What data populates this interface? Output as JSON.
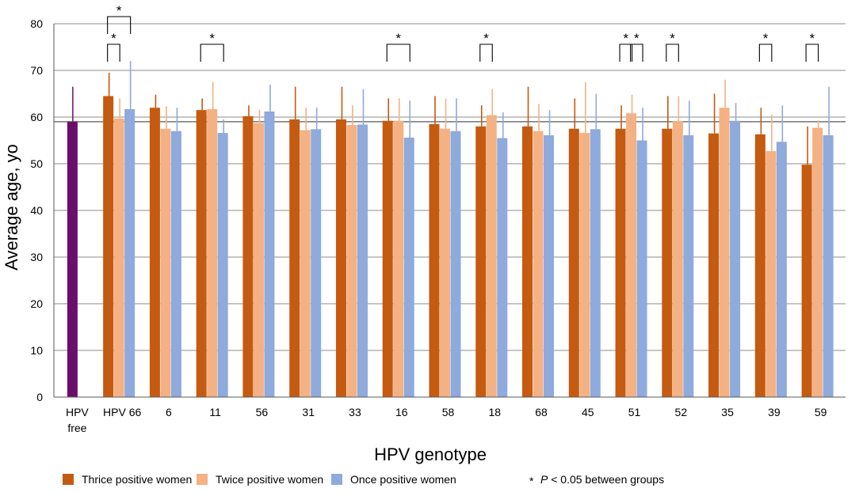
{
  "chart_data": {
    "type": "bar",
    "ylabel": "Average age, yo",
    "xlabel": "HPV genotype",
    "ylim": [
      0,
      80
    ],
    "yticks": [
      0,
      10,
      20,
      30,
      40,
      50,
      60,
      70,
      80
    ],
    "reference_line": 59,
    "reference_group": {
      "label_lines": [
        "HPV",
        "free"
      ],
      "value": 59,
      "error_upper": 66.5,
      "color": "#6b0d6b"
    },
    "categories": [
      "HPV 66",
      "6",
      "11",
      "56",
      "31",
      "33",
      "16",
      "58",
      "18",
      "68",
      "45",
      "51",
      "52",
      "35",
      "39",
      "59"
    ],
    "series": [
      {
        "name": "Thrice positive women",
        "color": "#c55a11",
        "values": [
          64.5,
          62,
          61.5,
          60.2,
          59.5,
          59.5,
          59.2,
          58.5,
          58,
          58,
          57.5,
          57.5,
          57.5,
          56.5,
          56.3,
          49.8
        ],
        "error_upper": [
          69.5,
          64.8,
          64,
          62.5,
          66.5,
          66.5,
          64,
          64.5,
          62.5,
          66.5,
          64,
          62.5,
          64.5,
          65,
          62,
          58
        ]
      },
      {
        "name": "Twice positive women",
        "color": "#f4b183",
        "values": [
          59.7,
          57.5,
          61.7,
          58.7,
          57.2,
          58.3,
          59.2,
          57.5,
          60.4,
          57,
          56.6,
          60.8,
          59.1,
          62,
          52.7,
          57.7
        ],
        "error_upper": [
          64,
          62.3,
          67.5,
          61.6,
          62,
          62.5,
          64,
          64,
          66,
          62.8,
          67.5,
          64.8,
          64.5,
          68,
          60.5,
          59.3
        ]
      },
      {
        "name": "Once positive women",
        "color": "#8faadc",
        "values": [
          61.7,
          57,
          56.6,
          61.2,
          57.4,
          58.4,
          55.6,
          57,
          55.5,
          56.1,
          57.4,
          55,
          56.1,
          59.2,
          54.7,
          56.1
        ],
        "error_upper": [
          72,
          62,
          59.5,
          67,
          62,
          66,
          63.5,
          64,
          61,
          61.5,
          65,
          62,
          63.5,
          63,
          62.5,
          66.5
        ]
      }
    ],
    "significance": [
      {
        "category": "HPV 66",
        "pair": [
          0,
          1
        ],
        "label": "*"
      },
      {
        "category": "HPV 66",
        "pair": [
          0,
          2
        ],
        "label": "*"
      },
      {
        "category": "11",
        "pair": [
          0,
          2
        ],
        "label": "*"
      },
      {
        "category": "16",
        "pair": [
          0,
          2
        ],
        "label": "*"
      },
      {
        "category": "18",
        "pair": [
          0,
          1
        ],
        "label": "*"
      },
      {
        "category": "51",
        "pair": [
          0,
          1
        ],
        "label": "*"
      },
      {
        "category": "51",
        "pair": [
          1,
          2
        ],
        "label": "*"
      },
      {
        "category": "52",
        "pair": [
          0,
          1
        ],
        "label": "*"
      },
      {
        "category": "39",
        "pair": [
          0,
          1
        ],
        "label": "*"
      },
      {
        "category": "59",
        "pair": [
          0,
          1
        ],
        "label": "*"
      }
    ],
    "legend": {
      "position": "bottom",
      "items": [
        "Thrice positive women",
        "Twice positive women",
        "Once positive women"
      ],
      "significance_note": {
        "symbol": "*",
        "p": "P",
        "rest": " < 0.05 between groups"
      }
    },
    "grid": true
  }
}
